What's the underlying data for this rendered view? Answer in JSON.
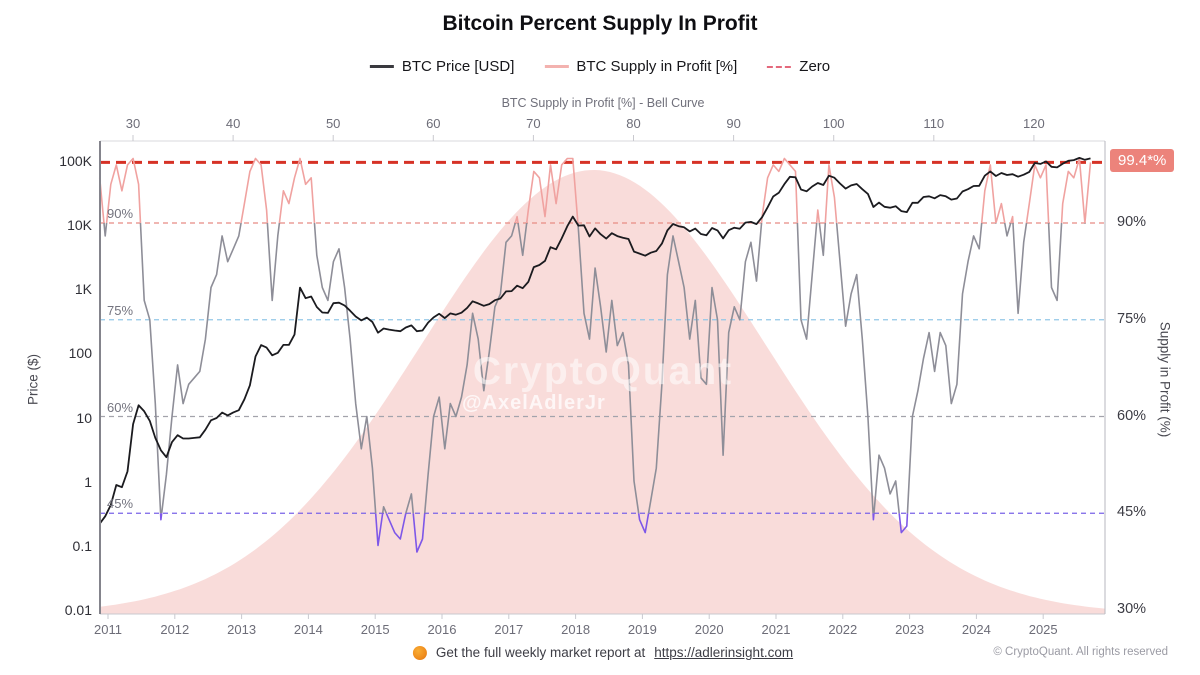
{
  "title": "Bitcoin Percent Supply In Profit",
  "legend": [
    {
      "label": "BTC Price [USD]",
      "color": "#3a3a3f",
      "style": "solid"
    },
    {
      "label": "BTC Supply in Profit [%]",
      "color": "#f3b2af",
      "style": "solid"
    },
    {
      "label": "Zero",
      "color": "#e4697c",
      "style": "dashed"
    }
  ],
  "axes": {
    "top": {
      "label": "BTC Supply in Profit [%] - Bell Curve",
      "ticks": [
        "30",
        "40",
        "50",
        "60",
        "70",
        "80",
        "90",
        "100",
        "110",
        "120"
      ],
      "tick_values": [
        30,
        40,
        50,
        60,
        70,
        80,
        90,
        100,
        110,
        120
      ]
    },
    "left": {
      "label": "Price ($)",
      "ticks": [
        "100K",
        "10K",
        "1K",
        "100",
        "10",
        "1",
        "0.1",
        "0.01"
      ],
      "tick_values": [
        100000,
        10000,
        1000,
        100,
        10,
        1,
        0.1,
        0.01
      ]
    },
    "right": {
      "label": "Supply in Profit (%)",
      "ticks": [
        "90%",
        "75%",
        "60%",
        "45%",
        "30%"
      ],
      "tick_values": [
        90,
        75,
        60,
        45,
        30
      ]
    },
    "bottom": {
      "ticks": [
        "2011",
        "2012",
        "2013",
        "2014",
        "2015",
        "2016",
        "2017",
        "2018",
        "2019",
        "2020",
        "2021",
        "2022",
        "2023",
        "2024",
        "2025"
      ],
      "tick_values": [
        2011,
        2012,
        2013,
        2014,
        2015,
        2016,
        2017,
        2018,
        2019,
        2020,
        2021,
        2022,
        2023,
        2024,
        2025
      ]
    }
  },
  "ref_lines": [
    {
      "label": "90%",
      "value": 90,
      "color": "#e78b83"
    },
    {
      "label": "75%",
      "value": 75,
      "color": "#92c7e8"
    },
    {
      "label": "60%",
      "value": 60,
      "color": "#a3a3ac"
    },
    {
      "label": "45%",
      "value": 45,
      "color": "#7a63e8"
    }
  ],
  "zero_line": {
    "legend_label": "Zero",
    "value": 99.4,
    "color": "#d63226",
    "badge": "99.4*%",
    "badge_bg": "#ec837b"
  },
  "watermark": {
    "line1": "CryptoQuant",
    "line2": "@AxelAdlerJr"
  },
  "footer": {
    "report_text": "Get the full weekly market report at",
    "report_link": "https://adlerinsight.com",
    "copyright": "© CryptoQuant. All rights reserved"
  },
  "chart_data": {
    "type": "line",
    "title": "Bitcoin Percent Supply In Profit",
    "x_unit": "month",
    "start_month": "2010-11",
    "end_month": "2025-09",
    "left_axis": {
      "scale": "log",
      "range": [
        0.01,
        100000
      ],
      "label": "Price ($)"
    },
    "right_axis": {
      "scale": "linear",
      "range": [
        30,
        100
      ],
      "label": "Supply in Profit (%)"
    },
    "top_axis": {
      "scale": "linear",
      "range": [
        30,
        120
      ],
      "label": "BTC Supply in Profit [%] - Bell Curve"
    },
    "grid": false,
    "legend_position": "top",
    "series": [
      {
        "name": "BTC Price [USD]",
        "axis": "left",
        "color": "#1b1b1f",
        "values": [
          0.23,
          0.3,
          0.45,
          0.92,
          0.85,
          1.5,
          8.2,
          16.1,
          13.0,
          9.2,
          5.0,
          3.2,
          2.5,
          4.3,
          5.5,
          4.9,
          4.9,
          5.0,
          5.1,
          6.7,
          9.4,
          10.2,
          12.4,
          11.2,
          12.5,
          13.5,
          20,
          33,
          93,
          140,
          128,
          97,
          106,
          141,
          141,
          204,
          1100,
          754,
          800,
          550,
          450,
          445,
          630,
          640,
          580,
          480,
          390,
          340,
          375,
          320,
          218,
          254,
          244,
          236,
          230,
          263,
          284,
          230,
          236,
          314,
          378,
          430,
          368,
          437,
          416,
          448,
          531,
          673,
          624,
          573,
          609,
          700,
          745,
          963,
          970,
          1180,
          1080,
          1350,
          2300,
          2480,
          2875,
          4700,
          4360,
          6450,
          10000,
          14100,
          10200,
          10300,
          6900,
          9240,
          7500,
          6400,
          7780,
          7000,
          6600,
          6300,
          4017,
          3740,
          3460,
          3850,
          4100,
          5350,
          8580,
          10800,
          10000,
          9600,
          8300,
          9150,
          7550,
          7200,
          9350,
          8600,
          6440,
          8650,
          9450,
          9140,
          11350,
          11650,
          10780,
          13800,
          19700,
          29000,
          33100,
          45200,
          58800,
          57750,
          37300,
          35000,
          41500,
          47100,
          43800,
          61300,
          57000,
          46200,
          38500,
          43200,
          45500,
          37650,
          31800,
          19900,
          23300,
          20050,
          19400,
          20500,
          17150,
          16550,
          23100,
          23150,
          28500,
          29250,
          27200,
          30480,
          29230,
          25930,
          26970,
          34650,
          37700,
          42270,
          42580,
          61200,
          71300,
          60640,
          67500,
          62680,
          64600,
          58970,
          63330,
          70200,
          96400,
          93430,
          102400,
          84350,
          82550,
          94200,
          104600,
          107100,
          115800,
          108200,
          114000
        ]
      },
      {
        "name": "BTC Supply in Profit [%]",
        "axis": "right",
        "color_mid": "#8e8e98",
        "color_high": "#f0a2a0",
        "color_low": "#7e57e8",
        "high_threshold": 90,
        "low_threshold": 45,
        "values": [
          97,
          88,
          96,
          99,
          95,
          99,
          100,
          96,
          78,
          75,
          62,
          44,
          51,
          60,
          68,
          62,
          65,
          66,
          67,
          72,
          80,
          82,
          88,
          84,
          86,
          88,
          93,
          98,
          100,
          99,
          92,
          78,
          88,
          95,
          93,
          97,
          100,
          96,
          97,
          85,
          80,
          78,
          84,
          86,
          80,
          72,
          62,
          55,
          60,
          52,
          40,
          46,
          44,
          42,
          41,
          45,
          48,
          39,
          41,
          51,
          60,
          63,
          55,
          62,
          60,
          63,
          68,
          76,
          72,
          64,
          70,
          77,
          79,
          87,
          88,
          91,
          85,
          92,
          98,
          97,
          91,
          99,
          93,
          99,
          100,
          100,
          89,
          76,
          72,
          83,
          77,
          70,
          78,
          71,
          73,
          68,
          50,
          44,
          42,
          47,
          52,
          65,
          82,
          88,
          84,
          80,
          72,
          78,
          66,
          65,
          80,
          75,
          54,
          73,
          77,
          75,
          84,
          87,
          81,
          91,
          97,
          99,
          98,
          100,
          99,
          98,
          75,
          72,
          82,
          92,
          85,
          99,
          94,
          84,
          74,
          79,
          82,
          72,
          60,
          44,
          54,
          52,
          48,
          50,
          42,
          43,
          60,
          64,
          69,
          73,
          67,
          73,
          71,
          62,
          65,
          79,
          84,
          88,
          86,
          95,
          99,
          90,
          93,
          88,
          91,
          76,
          87,
          93,
          99,
          97,
          99,
          80,
          78,
          93,
          98,
          97,
          100,
          90,
          99.4
        ]
      }
    ],
    "bell_curve": {
      "axis": "top",
      "mean": 76,
      "std": 17.2,
      "fill": "#f8d6d4",
      "note": "distribution of BTC Supply in Profit [%] values"
    },
    "current_value_label": "99.4*%"
  }
}
